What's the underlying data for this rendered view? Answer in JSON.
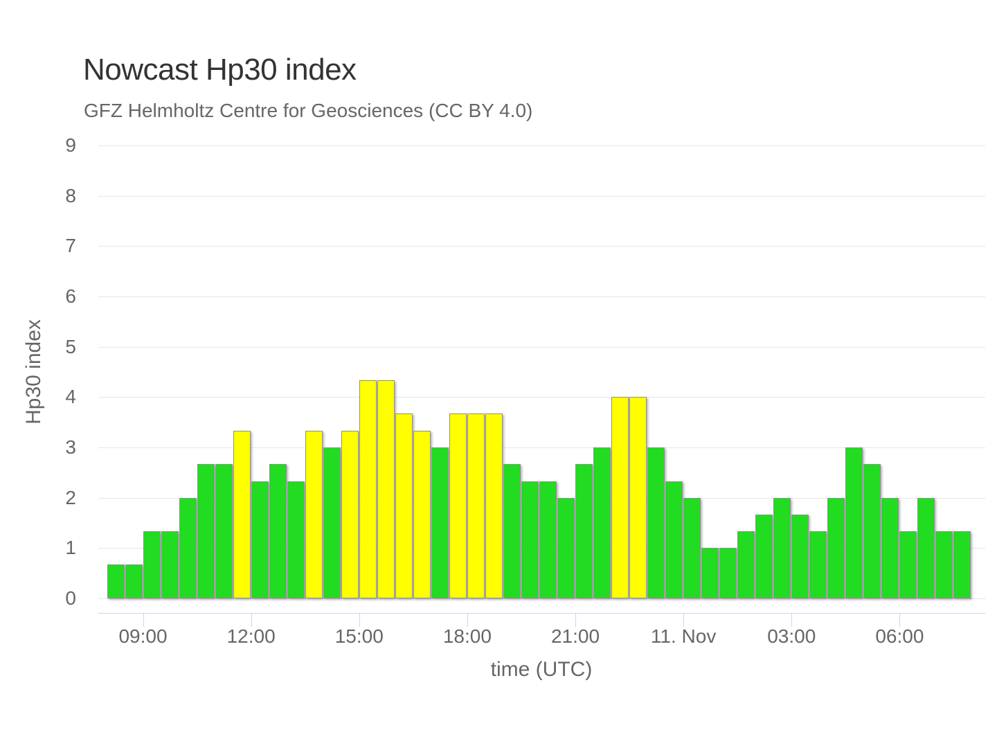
{
  "header": {
    "title": "Nowcast Hp30 index",
    "subtitle": "GFZ Helmholtz Centre for Geosciences (CC BY 4.0)"
  },
  "chart_data": {
    "type": "bar",
    "title": "Nowcast Hp30 index",
    "subtitle": "GFZ Helmholtz Centre for Geosciences (CC BY 4.0)",
    "xlabel": "time (UTC)",
    "ylabel": "Hp30 index",
    "ylim": [
      0,
      9
    ],
    "y_ticks": [
      0,
      1,
      2,
      3,
      4,
      5,
      6,
      7,
      8,
      9
    ],
    "grid": true,
    "legend": false,
    "bar_interval_minutes": 30,
    "x_ticks": [
      {
        "label": "09:00",
        "slot": 2
      },
      {
        "label": "12:00",
        "slot": 8
      },
      {
        "label": "15:00",
        "slot": 14
      },
      {
        "label": "18:00",
        "slot": 20
      },
      {
        "label": "21:00",
        "slot": 26
      },
      {
        "label": "11. Nov",
        "slot": 32
      },
      {
        "label": "03:00",
        "slot": 38
      },
      {
        "label": "06:00",
        "slot": 44
      }
    ],
    "categories": [
      "08:00",
      "08:30",
      "09:00",
      "09:30",
      "10:00",
      "10:30",
      "11:00",
      "11:30",
      "12:00",
      "12:30",
      "13:00",
      "13:30",
      "14:00",
      "14:30",
      "15:00",
      "15:30",
      "16:00",
      "16:30",
      "17:00",
      "17:30",
      "18:00",
      "18:30",
      "19:00",
      "19:30",
      "20:00",
      "20:30",
      "21:00",
      "21:30",
      "22:00",
      "22:30",
      "23:00",
      "23:30",
      "00:00",
      "00:30",
      "01:00",
      "01:30",
      "02:00",
      "02:30",
      "03:00",
      "03:30",
      "04:00",
      "04:30",
      "05:00",
      "05:30",
      "06:00",
      "06:30",
      "07:00",
      "07:30"
    ],
    "values": [
      0.67,
      0.67,
      1.33,
      1.33,
      2.0,
      2.67,
      2.67,
      3.33,
      2.33,
      2.67,
      2.33,
      3.33,
      3.0,
      3.33,
      4.33,
      4.33,
      3.67,
      3.33,
      3.0,
      3.67,
      3.67,
      3.67,
      2.67,
      2.33,
      2.33,
      2.0,
      2.67,
      3.0,
      4.0,
      4.0,
      3.0,
      2.33,
      2.0,
      1.0,
      1.0,
      1.33,
      1.67,
      2.0,
      1.67,
      1.33,
      2.0,
      3.0,
      2.67,
      2.0,
      1.33,
      2.0,
      1.33,
      1.33
    ],
    "bar_colors": [
      "green",
      "green",
      "green",
      "green",
      "green",
      "green",
      "green",
      "yellow",
      "green",
      "green",
      "green",
      "yellow",
      "green",
      "yellow",
      "yellow",
      "yellow",
      "yellow",
      "yellow",
      "green",
      "yellow",
      "yellow",
      "yellow",
      "green",
      "green",
      "green",
      "green",
      "green",
      "green",
      "yellow",
      "yellow",
      "green",
      "green",
      "green",
      "green",
      "green",
      "green",
      "green",
      "green",
      "green",
      "green",
      "green",
      "green",
      "green",
      "green",
      "green",
      "green",
      "green",
      "green"
    ],
    "color_rule": "yellow if value > 3, green otherwise"
  },
  "colors": {
    "green": "#22dc22",
    "yellow": "#ffff00",
    "bar_border": "#8f8f8f",
    "grid": "#e6e6e6",
    "axis_line": "#ccd6eb",
    "title": "#333333",
    "subtitle": "#666666",
    "labels": "#666666",
    "background": "#ffffff"
  }
}
